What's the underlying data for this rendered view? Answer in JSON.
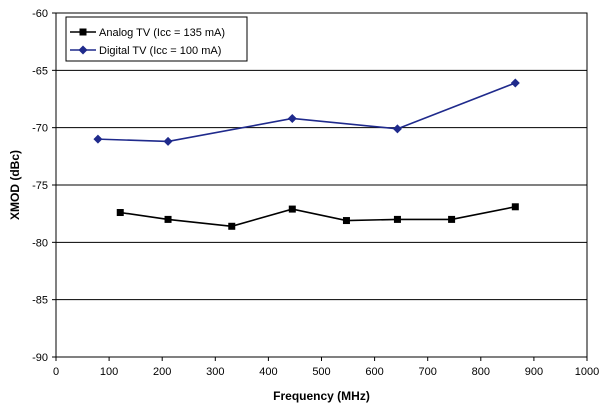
{
  "chart_data": {
    "type": "line",
    "title": "",
    "xlabel": "Frequency (MHz)",
    "ylabel": "XMOD (dBc)",
    "xlim": [
      0,
      1000
    ],
    "ylim": [
      -90,
      -60
    ],
    "xticks": [
      "0",
      "100",
      "200",
      "300",
      "400",
      "500",
      "600",
      "700",
      "800",
      "900",
      "1000"
    ],
    "yticks": [
      "-60",
      "-65",
      "-70",
      "-75",
      "-80",
      "-85",
      "-90"
    ],
    "grid": "horizontal",
    "legend_position": "top-left",
    "series": [
      {
        "name": "Analog TV (Icc = 135 mA)",
        "color": "#000000",
        "marker": "square",
        "x": [
          121,
          211,
          331,
          445,
          547,
          643,
          745,
          865
        ],
        "y": [
          -77.4,
          -78.0,
          -78.6,
          -77.1,
          -78.1,
          -78.0,
          -78.0,
          -76.9
        ]
      },
      {
        "name": "Digital TV (Icc = 100 mA)",
        "color": "#1f2a8c",
        "marker": "diamond",
        "x": [
          79,
          211,
          445,
          643,
          865
        ],
        "y": [
          -71.0,
          -71.2,
          -69.2,
          -70.1,
          -66.1
        ]
      }
    ]
  }
}
